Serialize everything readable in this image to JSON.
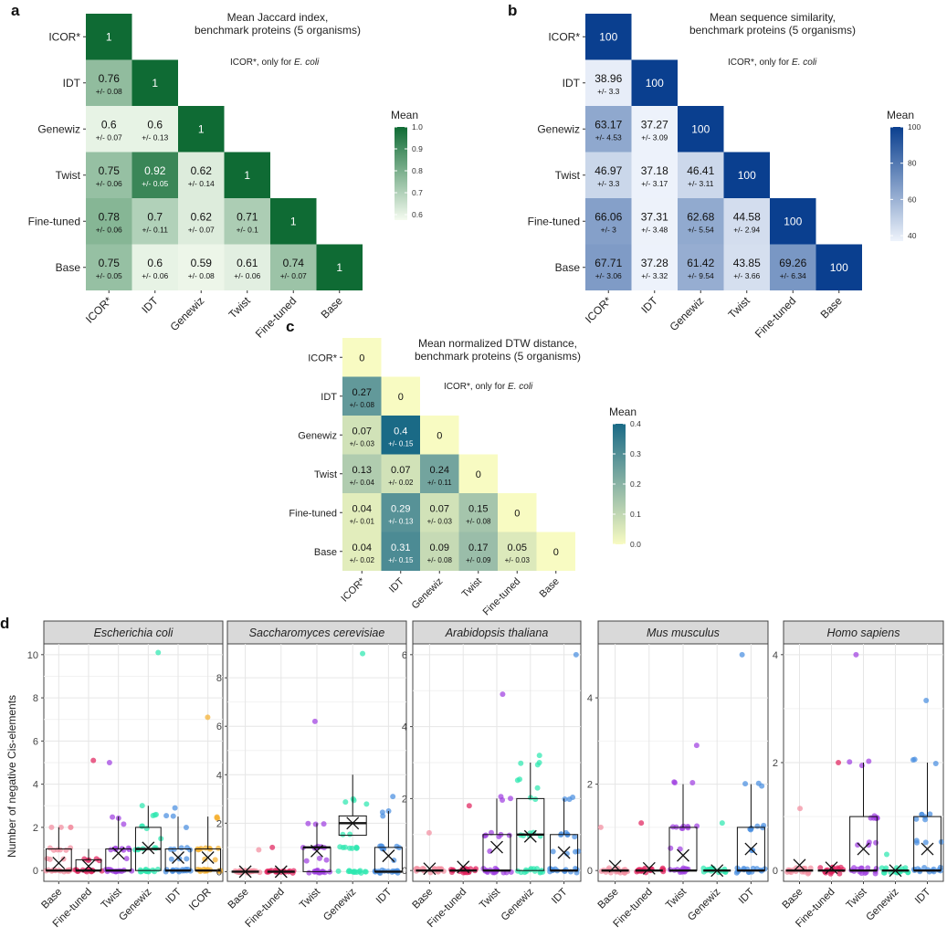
{
  "heatmaps": [
    {
      "panel": "a",
      "title_lines": [
        "Mean Jaccard index,",
        "benchmark proteins (5 organisms)"
      ],
      "note_prefix": "ICOR*, only for ",
      "note_italic": "E. coli",
      "legend_title": "Mean",
      "legend_ticks": [
        "1.0",
        "0.9",
        "0.8",
        "0.7",
        "0.6"
      ],
      "colors": [
        "#f5fbf0",
        "#0f6b34"
      ],
      "chart_data": {
        "type": "heatmap",
        "rows": [
          "ICOR*",
          "IDT",
          "Genewiz",
          "Twist",
          "Fine-tuned",
          "Base"
        ],
        "cols": [
          "ICOR*",
          "IDT",
          "Genewiz",
          "Twist",
          "Fine-tuned",
          "Base"
        ],
        "means": [
          [
            "1"
          ],
          [
            "0.76",
            "1"
          ],
          [
            "0.6",
            "0.6",
            "1"
          ],
          [
            "0.75",
            "0.92",
            "0.62",
            "1"
          ],
          [
            "0.78",
            "0.7",
            "0.62",
            "0.71",
            "1"
          ],
          [
            "0.75",
            "0.6",
            "0.59",
            "0.61",
            "0.74",
            "1"
          ]
        ],
        "sds": [
          [
            ""
          ],
          [
            "+/- 0.08",
            ""
          ],
          [
            "+/- 0.07",
            "+/- 0.13",
            ""
          ],
          [
            "+/- 0.06",
            "+/- 0.05",
            "+/- 0.14",
            ""
          ],
          [
            "+/- 0.06",
            "+/- 0.11",
            "+/- 0.07",
            "+/- 0.1",
            ""
          ],
          [
            "+/- 0.05",
            "+/- 0.06",
            "+/- 0.08",
            "+/- 0.06",
            "+/- 0.07",
            ""
          ]
        ],
        "scale": [
          0.575,
          1.0
        ]
      }
    },
    {
      "panel": "b",
      "title_lines": [
        "Mean sequence similarity,",
        "benchmark proteins (5 organisms)"
      ],
      "note_prefix": "ICOR*, only for ",
      "note_italic": "E. coli",
      "legend_title": "Mean",
      "legend_ticks": [
        "100",
        "80",
        "60",
        "40"
      ],
      "colors": [
        "#eef3fb",
        "#0a3f8f"
      ],
      "chart_data": {
        "type": "heatmap",
        "rows": [
          "ICOR*",
          "IDT",
          "Genewiz",
          "Twist",
          "Fine-tuned",
          "Base"
        ],
        "cols": [
          "ICOR*",
          "IDT",
          "Genewiz",
          "Twist",
          "Fine-tuned",
          "Base"
        ],
        "means": [
          [
            "100"
          ],
          [
            "38.96",
            "100"
          ],
          [
            "63.17",
            "37.27",
            "100"
          ],
          [
            "46.97",
            "37.18",
            "46.41",
            "100"
          ],
          [
            "66.06",
            "37.31",
            "62.68",
            "44.58",
            "100"
          ],
          [
            "67.71",
            "37.28",
            "61.42",
            "43.85",
            "69.26",
            "100"
          ]
        ],
        "sds": [
          [
            ""
          ],
          [
            "+/- 3.3",
            ""
          ],
          [
            "+/- 4.53",
            "+/- 3.09",
            ""
          ],
          [
            "+/- 3.3",
            "+/- 3.17",
            "+/- 3.11",
            ""
          ],
          [
            "+/- 3",
            "+/- 3.48",
            "+/- 5.54",
            "+/- 2.94",
            ""
          ],
          [
            "+/- 3.06",
            "+/- 3.32",
            "+/- 9.54",
            "+/- 3.66",
            "+/- 6.34",
            ""
          ]
        ],
        "scale": [
          37,
          100
        ]
      }
    },
    {
      "panel": "c",
      "title_lines": [
        "Mean normalized DTW distance,",
        "benchmark proteins (5 organisms)"
      ],
      "note_prefix": "ICOR*, only for ",
      "note_italic": "E. coli",
      "legend_title": "Mean",
      "legend_ticks": [
        "0.4",
        "0.3",
        "0.2",
        "0.1",
        "0.0"
      ],
      "colors": [
        "#f8fbc2",
        "#1a6a86"
      ],
      "chart_data": {
        "type": "heatmap",
        "rows": [
          "ICOR*",
          "IDT",
          "Genewiz",
          "Twist",
          "Fine-tuned",
          "Base"
        ],
        "cols": [
          "ICOR*",
          "IDT",
          "Genewiz",
          "Twist",
          "Fine-tuned",
          "Base"
        ],
        "means": [
          [
            "0"
          ],
          [
            "0.27",
            "0"
          ],
          [
            "0.07",
            "0.4",
            "0"
          ],
          [
            "0.13",
            "0.07",
            "0.24",
            "0"
          ],
          [
            "0.04",
            "0.29",
            "0.07",
            "0.15",
            "0"
          ],
          [
            "0.04",
            "0.31",
            "0.09",
            "0.17",
            "0.05",
            "0"
          ]
        ],
        "sds": [
          [
            ""
          ],
          [
            "+/- 0.08",
            ""
          ],
          [
            "+/- 0.03",
            "+/- 0.15",
            ""
          ],
          [
            "+/- 0.04",
            "+/- 0.02",
            "+/- 0.11",
            ""
          ],
          [
            "+/- 0.01",
            "+/- 0.13",
            "+/- 0.03",
            "+/- 0.08",
            ""
          ],
          [
            "+/- 0.02",
            "+/- 0.15",
            "+/- 0.08",
            "+/- 0.09",
            "+/- 0.03",
            ""
          ]
        ],
        "scale": [
          0.0,
          0.4
        ]
      }
    }
  ],
  "boxpanel": {
    "panel": "d",
    "ylabel": "Number of negative Cis-elements",
    "chart_data": [
      {
        "type": "box",
        "facet": "Escherichia coli",
        "ylim": [
          -0.5,
          10.5
        ],
        "yticks": [
          0,
          2,
          4,
          6,
          8,
          10
        ],
        "categories": [
          "Base",
          "Fine-tuned",
          "Twist",
          "Genewiz",
          "IDT",
          "ICOR"
        ],
        "colors": [
          "#f28e9f",
          "#e0245e",
          "#a040e0",
          "#2ee8b0",
          "#4a8fe0",
          "#f5b030"
        ],
        "q1": [
          0,
          0,
          0,
          0,
          0,
          0
        ],
        "median": [
          0,
          0,
          0,
          1,
          0,
          0
        ],
        "q3": [
          1,
          0.5,
          1,
          2,
          1,
          1
        ],
        "whisker_high": [
          2,
          1,
          2.5,
          3,
          2.5,
          2.5
        ],
        "mean": [
          0.35,
          0.2,
          0.8,
          1.05,
          0.6,
          0.6
        ],
        "max": [
          2,
          5.1,
          5,
          10.1,
          2.9,
          7.1
        ]
      },
      {
        "type": "box",
        "facet": "Saccharomyces cerevisiae",
        "ylim": [
          -0.4,
          9.4
        ],
        "yticks": [
          0,
          2,
          4,
          6,
          8
        ],
        "categories": [
          "Base",
          "Fine-tuned",
          "Twist",
          "Genewiz",
          "IDT"
        ],
        "colors": [
          "#f28e9f",
          "#e0245e",
          "#a040e0",
          "#2ee8b0",
          "#4a8fe0"
        ],
        "q1": [
          0,
          0,
          0,
          1.5,
          0
        ],
        "median": [
          0,
          0,
          1,
          2,
          0
        ],
        "q3": [
          0,
          0,
          1,
          2.3,
          1
        ],
        "whisker_high": [
          0,
          0,
          2,
          4,
          2.5
        ],
        "mean": [
          0,
          0,
          0.85,
          2.0,
          0.65
        ],
        "max": [
          0.9,
          1.0,
          6.2,
          9.0,
          3.1
        ]
      },
      {
        "type": "box",
        "facet": "Arabidopsis thaliana",
        "ylim": [
          -0.3,
          6.3
        ],
        "yticks": [
          0,
          2,
          4,
          6
        ],
        "categories": [
          "Base",
          "Fine-tuned",
          "Twist",
          "Genewiz",
          "IDT"
        ],
        "colors": [
          "#f28e9f",
          "#e0245e",
          "#a040e0",
          "#2ee8b0",
          "#4a8fe0"
        ],
        "q1": [
          0,
          0,
          0,
          0,
          0
        ],
        "median": [
          0,
          0,
          0,
          1,
          0
        ],
        "q3": [
          0,
          0,
          1,
          2,
          1
        ],
        "whisker_high": [
          0,
          0,
          2,
          3,
          2
        ],
        "mean": [
          0.05,
          0.1,
          0.65,
          0.95,
          0.5
        ],
        "max": [
          1.05,
          1.8,
          4.9,
          3.2,
          6.0
        ]
      },
      {
        "type": "box",
        "facet": "Mus musculus",
        "ylim": [
          -0.25,
          5.25
        ],
        "yticks": [
          0,
          2,
          4
        ],
        "categories": [
          "Base",
          "Fine-tuned",
          "Twist",
          "Genewiz",
          "IDT"
        ],
        "colors": [
          "#f28e9f",
          "#e0245e",
          "#a040e0",
          "#2ee8b0",
          "#4a8fe0"
        ],
        "q1": [
          0,
          0,
          0,
          0,
          0
        ],
        "median": [
          0,
          0,
          0,
          0,
          0
        ],
        "q3": [
          0,
          0,
          1,
          0,
          1
        ],
        "whisker_high": [
          0,
          0,
          2,
          0,
          2
        ],
        "mean": [
          0.1,
          0.05,
          0.35,
          0.0,
          0.5
        ],
        "max": [
          1.0,
          1.1,
          2.9,
          1.1,
          5.0
        ]
      },
      {
        "type": "box",
        "facet": "Homo sapiens",
        "ylim": [
          -0.2,
          4.2
        ],
        "yticks": [
          0,
          2,
          4
        ],
        "categories": [
          "Base",
          "Fine-tuned",
          "Twist",
          "Genewiz",
          "IDT"
        ],
        "colors": [
          "#f28e9f",
          "#e0245e",
          "#a040e0",
          "#2ee8b0",
          "#4a8fe0"
        ],
        "q1": [
          0,
          0,
          0,
          0,
          0
        ],
        "median": [
          0,
          0,
          0,
          0,
          0
        ],
        "q3": [
          0,
          0,
          1,
          0,
          1
        ],
        "whisker_high": [
          0,
          0,
          2,
          0,
          2
        ],
        "mean": [
          0.1,
          0.05,
          0.4,
          0.0,
          0.4
        ],
        "max": [
          1.15,
          2.0,
          4.0,
          0.3,
          3.15
        ]
      }
    ]
  }
}
